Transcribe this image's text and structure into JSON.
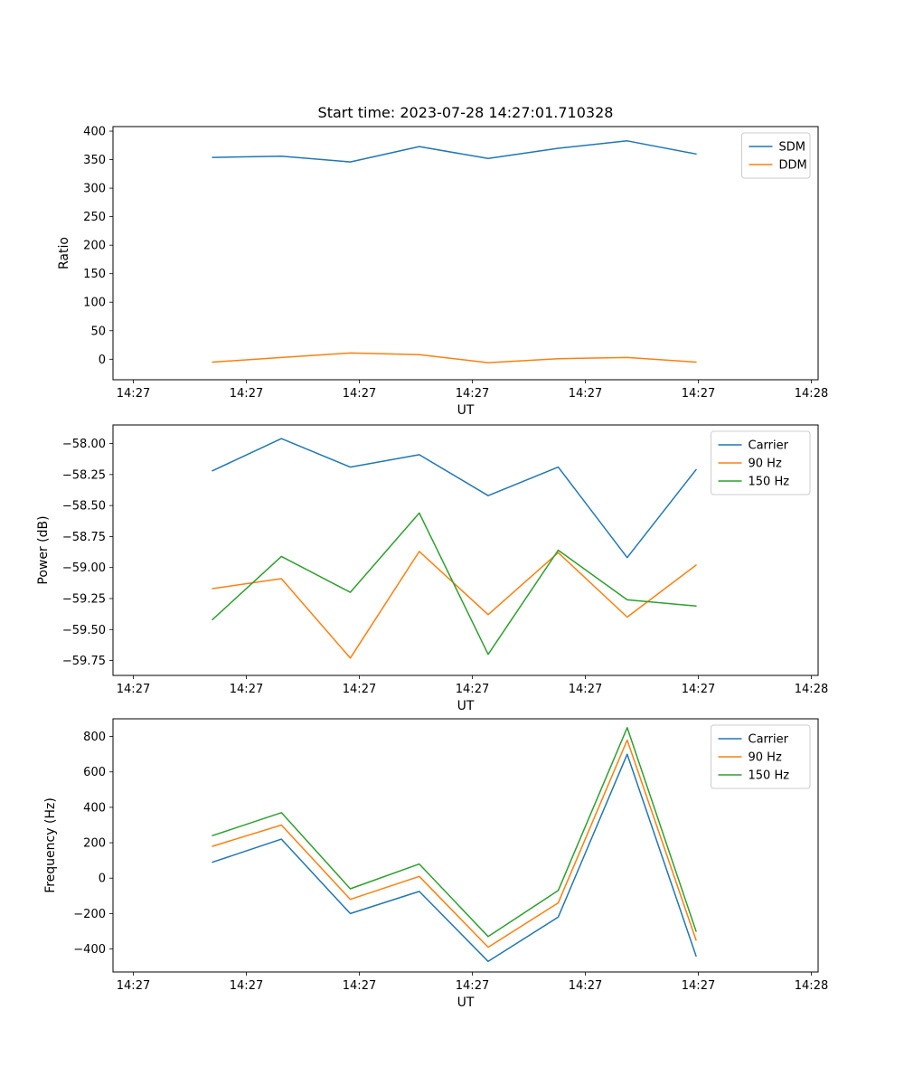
{
  "figure": {
    "title": "Start time: 2023-07-28 14:27:01.710328",
    "background": "#ffffff"
  },
  "colors": {
    "blue": "#1f77b4",
    "orange": "#ff7f0e",
    "green": "#2ca02c",
    "axis": "#000000",
    "legend_edge": "#cccccc"
  },
  "chart_data": [
    {
      "type": "line",
      "title": "Start time: 2023-07-28 14:27:01.710328",
      "xlabel": "UT",
      "ylabel": "Ratio",
      "xlim": [
        -1.8,
        60.6
      ],
      "ylim": [
        -36,
        408
      ],
      "grid": false,
      "legend_position": "upper right",
      "x_ticks": {
        "values": [
          0,
          10,
          20,
          30,
          40,
          50,
          60
        ],
        "labels": [
          "14:27",
          "14:27",
          "14:27",
          "14:27",
          "14:27",
          "14:27",
          "14:28"
        ]
      },
      "y_ticks": {
        "values": [
          0,
          50,
          100,
          150,
          200,
          250,
          300,
          350,
          400
        ],
        "labels": [
          "0",
          "50",
          "100",
          "150",
          "200",
          "250",
          "300",
          "350",
          "400"
        ]
      },
      "x": [
        7,
        13.1,
        19.2,
        25.3,
        31.4,
        37.6,
        43.7,
        49.8
      ],
      "series": [
        {
          "name": "SDM",
          "color": "#1f77b4",
          "values": [
            354,
            356,
            346,
            373,
            352,
            370,
            383,
            360
          ]
        },
        {
          "name": "DDM",
          "color": "#ff7f0e",
          "values": [
            -5,
            3,
            11,
            8,
            -6,
            1,
            3,
            -5
          ]
        }
      ]
    },
    {
      "type": "line",
      "title": "",
      "xlabel": "UT",
      "ylabel": "Power (dB)",
      "xlim": [
        -1.8,
        60.6
      ],
      "ylim": [
        -59.87,
        -57.85
      ],
      "grid": false,
      "legend_position": "upper right",
      "x_ticks": {
        "values": [
          0,
          10,
          20,
          30,
          40,
          50,
          60
        ],
        "labels": [
          "14:27",
          "14:27",
          "14:27",
          "14:27",
          "14:27",
          "14:27",
          "14:28"
        ]
      },
      "y_ticks": {
        "values": [
          -59.75,
          -59.5,
          -59.25,
          -59.0,
          -58.75,
          -58.5,
          -58.25,
          -58.0
        ],
        "labels": [
          "−59.75",
          "−59.50",
          "−59.25",
          "−59.00",
          "−58.75",
          "−58.50",
          "−58.25",
          "−58.00"
        ]
      },
      "x": [
        7,
        13.1,
        19.2,
        25.3,
        31.4,
        37.6,
        43.7,
        49.8
      ],
      "series": [
        {
          "name": "Carrier",
          "color": "#1f77b4",
          "values": [
            -58.22,
            -57.96,
            -58.19,
            -58.09,
            -58.42,
            -58.19,
            -58.92,
            -58.21
          ]
        },
        {
          "name": "90 Hz",
          "color": "#ff7f0e",
          "values": [
            -59.17,
            -59.09,
            -59.73,
            -58.87,
            -59.38,
            -58.88,
            -59.4,
            -58.98
          ]
        },
        {
          "name": "150 Hz",
          "color": "#2ca02c",
          "values": [
            -59.42,
            -58.91,
            -59.2,
            -58.56,
            -59.7,
            -58.86,
            -59.26,
            -59.31
          ]
        }
      ]
    },
    {
      "type": "line",
      "title": "",
      "xlabel": "UT",
      "ylabel": "Frequency (Hz)",
      "xlim": [
        -1.8,
        60.6
      ],
      "ylim": [
        -530,
        900
      ],
      "grid": false,
      "legend_position": "upper right",
      "x_ticks": {
        "values": [
          0,
          10,
          20,
          30,
          40,
          50,
          60
        ],
        "labels": [
          "14:27",
          "14:27",
          "14:27",
          "14:27",
          "14:27",
          "14:27",
          "14:28"
        ]
      },
      "y_ticks": {
        "values": [
          -400,
          -200,
          0,
          200,
          400,
          600,
          800
        ],
        "labels": [
          "−400",
          "−200",
          "0",
          "200",
          "400",
          "600",
          "800"
        ]
      },
      "x": [
        7,
        13.1,
        19.2,
        25.3,
        31.4,
        37.6,
        43.7,
        49.8
      ],
      "series": [
        {
          "name": "Carrier",
          "color": "#1f77b4",
          "values": [
            90,
            220,
            -200,
            -75,
            -470,
            -220,
            700,
            -440
          ]
        },
        {
          "name": "90 Hz",
          "color": "#ff7f0e",
          "values": [
            180,
            300,
            -120,
            10,
            -390,
            -140,
            780,
            -350
          ]
        },
        {
          "name": "150 Hz",
          "color": "#2ca02c",
          "values": [
            240,
            370,
            -60,
            80,
            -330,
            -70,
            850,
            -300
          ]
        }
      ]
    }
  ]
}
